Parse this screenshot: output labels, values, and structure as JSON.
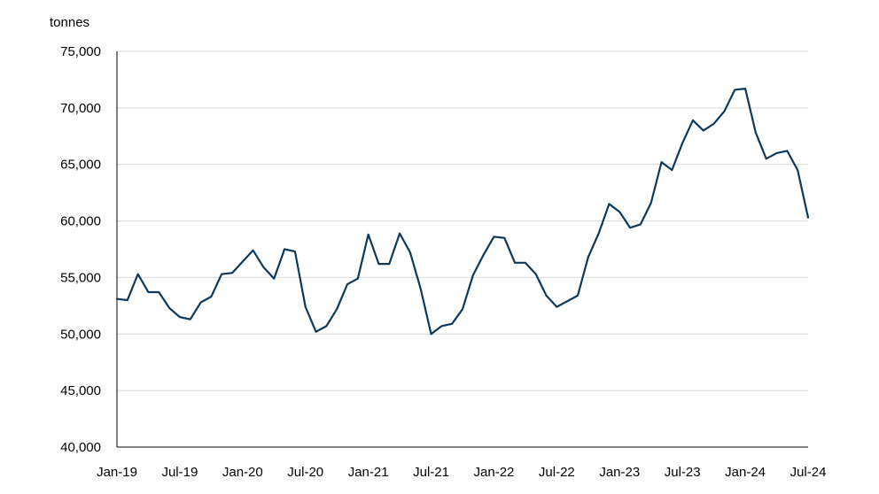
{
  "chart_data": {
    "type": "line",
    "title": "",
    "xlabel": "",
    "ylabel": "tonnes",
    "ylim": [
      40000,
      75000
    ],
    "yticks": [
      40000,
      45000,
      50000,
      55000,
      60000,
      65000,
      70000,
      75000
    ],
    "ytick_labels": [
      "40,000",
      "45,000",
      "50,000",
      "55,000",
      "60,000",
      "65,000",
      "70,000",
      "75,000"
    ],
    "x_start": "Jan-19",
    "x_end": "Jul-24",
    "xtick_labels": [
      "Jan-19",
      "Jul-19",
      "Jan-20",
      "Jul-20",
      "Jan-21",
      "Jul-21",
      "Jan-22",
      "Jul-22",
      "Jan-23",
      "Jul-23",
      "Jan-24",
      "Jul-24"
    ],
    "grid": "horizontal",
    "legend": "none",
    "line_color": "#0d3a5c",
    "series": [
      {
        "values": [
          53100,
          53000,
          55300,
          53700,
          53700,
          52300,
          51500,
          51300,
          52800,
          53300,
          55300,
          55400,
          56400,
          57400,
          55900,
          54900,
          57500,
          57300,
          52400,
          50200,
          50700,
          52200,
          54400,
          54900,
          58800,
          56200,
          56200,
          58900,
          57200,
          54000,
          50000,
          50700,
          50900,
          52200,
          55200,
          57000,
          58600,
          58500,
          56300,
          56300,
          55300,
          53400,
          52400,
          52900,
          53400,
          56800,
          58900,
          61500,
          60800,
          59400,
          59700,
          61600,
          65200,
          64500,
          66900,
          68900,
          68000,
          68600,
          69700,
          71600,
          71700,
          67800,
          65500,
          66000,
          66200,
          64500,
          60300
        ]
      }
    ]
  }
}
